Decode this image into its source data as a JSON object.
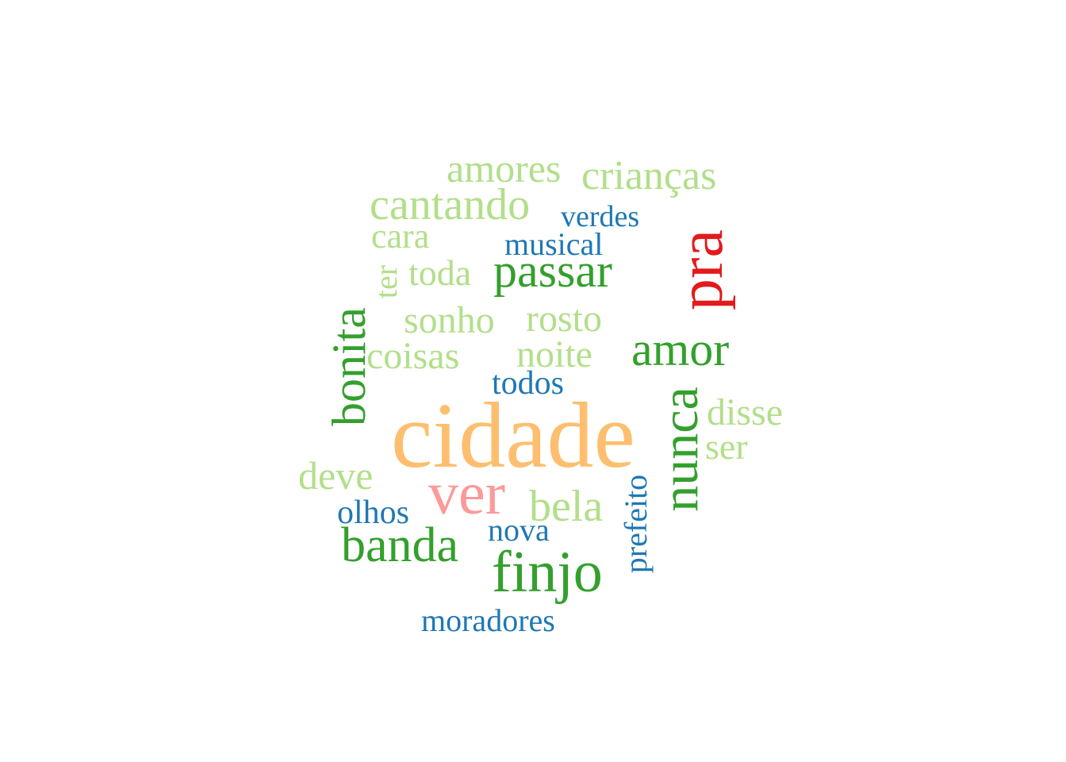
{
  "colors": {
    "orange": "#fdbf6f",
    "pink": "#fb9a99",
    "red": "#e31a1c",
    "green": "#33a02c",
    "light_green": "#b2df8a",
    "blue": "#1f78b4"
  },
  "words": [
    {
      "text": "amores",
      "color": "#b2df8a",
      "vertical": false
    },
    {
      "text": "crianças",
      "color": "#b2df8a",
      "vertical": false
    },
    {
      "text": "cantando",
      "color": "#b2df8a",
      "vertical": false
    },
    {
      "text": "verdes",
      "color": "#1f78b4",
      "vertical": false
    },
    {
      "text": "cara",
      "color": "#b2df8a",
      "vertical": false
    },
    {
      "text": "musical",
      "color": "#1f78b4",
      "vertical": false
    },
    {
      "text": "pra",
      "color": "#e31a1c",
      "vertical": true
    },
    {
      "text": "ter",
      "color": "#b2df8a",
      "vertical": true
    },
    {
      "text": "toda",
      "color": "#b2df8a",
      "vertical": false
    },
    {
      "text": "passar",
      "color": "#33a02c",
      "vertical": false
    },
    {
      "text": "sonho",
      "color": "#b2df8a",
      "vertical": false
    },
    {
      "text": "rosto",
      "color": "#b2df8a",
      "vertical": false
    },
    {
      "text": "bonita",
      "color": "#33a02c",
      "vertical": true
    },
    {
      "text": "amor",
      "color": "#33a02c",
      "vertical": false
    },
    {
      "text": "coisas",
      "color": "#b2df8a",
      "vertical": false
    },
    {
      "text": "noite",
      "color": "#b2df8a",
      "vertical": false
    },
    {
      "text": "todos",
      "color": "#1f78b4",
      "vertical": false
    },
    {
      "text": "disse",
      "color": "#b2df8a",
      "vertical": false
    },
    {
      "text": "nunca",
      "color": "#33a02c",
      "vertical": true
    },
    {
      "text": "cidade",
      "color": "#fdbf6f",
      "vertical": false
    },
    {
      "text": "ser",
      "color": "#b2df8a",
      "vertical": false
    },
    {
      "text": "deve",
      "color": "#b2df8a",
      "vertical": false
    },
    {
      "text": "ver",
      "color": "#fb9a99",
      "vertical": false
    },
    {
      "text": "prefeito",
      "color": "#1f78b4",
      "vertical": true
    },
    {
      "text": "bela",
      "color": "#b2df8a",
      "vertical": false
    },
    {
      "text": "olhos",
      "color": "#1f78b4",
      "vertical": false
    },
    {
      "text": "nova",
      "color": "#1f78b4",
      "vertical": false
    },
    {
      "text": "banda",
      "color": "#33a02c",
      "vertical": false
    },
    {
      "text": "finjo",
      "color": "#33a02c",
      "vertical": false
    },
    {
      "text": "moradores",
      "color": "#1f78b4",
      "vertical": false
    }
  ]
}
